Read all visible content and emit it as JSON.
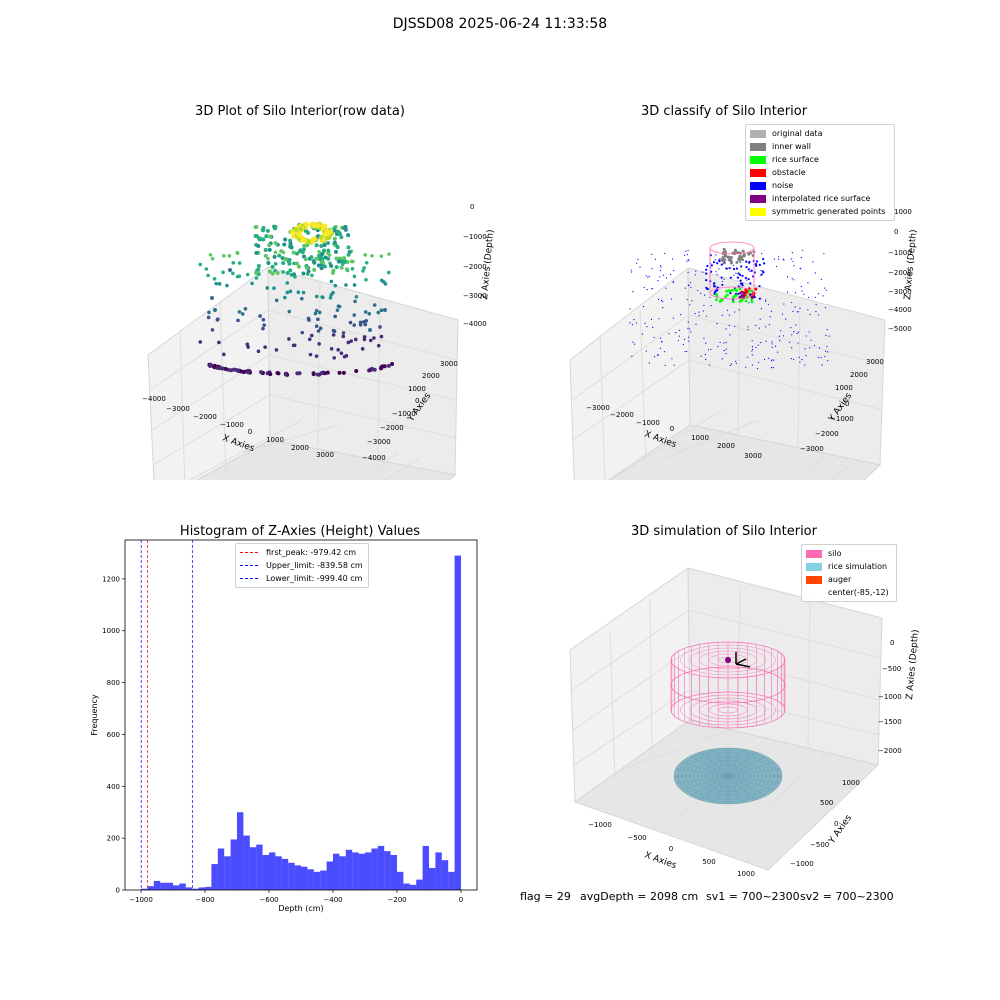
{
  "suptitle": "DJSSD08 2025-06-24 11:33:58",
  "panels": {
    "raw": {
      "title": "3D Plot of Silo Interior(row data)",
      "xlabel": "X Axies",
      "ylabel": "Y Axies",
      "zlabel": "Z Axies (Depth)",
      "xticks": [
        "−4000",
        "−3000",
        "−2000",
        "−1000",
        "0",
        "1000",
        "2000",
        "3000"
      ],
      "yticks": [
        "−4000",
        "−3000",
        "−2000",
        "−1000",
        "0",
        "1000",
        "2000",
        "3000"
      ],
      "zticks": [
        "0",
        "−1000",
        "−2000",
        "−3000",
        "−4000"
      ]
    },
    "classify": {
      "title": "3D classify of Silo Interior",
      "xlabel": "X Axies",
      "ylabel": "Y Axies",
      "zlabel": "Z Axies (Depth)",
      "xticks": [
        "−3000",
        "−2000",
        "−1000",
        "0",
        "1000",
        "2000",
        "3000"
      ],
      "yticks": [
        "−3000",
        "−2000",
        "−1000",
        "0",
        "1000",
        "2000",
        "3000"
      ],
      "zticks": [
        "1000",
        "0",
        "−1000",
        "−2000",
        "−3000",
        "−4000",
        "−5000"
      ],
      "legend": [
        {
          "label": "original data",
          "color": "#b0b0b0"
        },
        {
          "label": "inner wall",
          "color": "#808080"
        },
        {
          "label": "rice surface",
          "color": "#00ff00"
        },
        {
          "label": "obstacle",
          "color": "#ff0000"
        },
        {
          "label": "noise",
          "color": "#0000ff"
        },
        {
          "label": "interpolated rice surface",
          "color": "#800080"
        },
        {
          "label": "symmetric generated points",
          "color": "#ffff00"
        }
      ]
    },
    "simulation": {
      "title": "3D simulation of Silo Interior",
      "xlabel": "X Axies",
      "ylabel": "Y Axies",
      "zlabel": "Z Axies (Depth)",
      "xticks": [
        "−1000",
        "−500",
        "0",
        "500",
        "1000"
      ],
      "yticks": [
        "−1000",
        "−500",
        "0",
        "500",
        "1000"
      ],
      "zticks": [
        "0",
        "−500",
        "−1000",
        "−1500",
        "−2000"
      ],
      "legend": [
        {
          "label": "silo",
          "color": "#ff69b4"
        },
        {
          "label": "rice simulation",
          "color": "#87ceeb"
        },
        {
          "label": "auger",
          "color": "#ff4500"
        },
        {
          "label": "center(-85,-12)",
          "color": ""
        }
      ]
    }
  },
  "status": {
    "flag": "flag = 29",
    "avg_depth": "avgDepth = 2098 cm",
    "sv1": "sv1 = 700~2300",
    "sv2": "sv2 = 700~2300"
  },
  "chart_data": [
    {
      "type": "scatter",
      "subtype": "3d",
      "title": "3D Plot of Silo Interior(row data)",
      "xlabel": "X Axies",
      "ylabel": "Y Axies",
      "zlabel": "Z Axies (Depth)",
      "xlim": [
        -4000,
        3500
      ],
      "ylim": [
        -4000,
        3500
      ],
      "zlim": [
        -4800,
        200
      ],
      "colormap": "viridis"
    },
    {
      "type": "scatter",
      "subtype": "3d",
      "title": "3D classify of Silo Interior",
      "xlabel": "X Axies",
      "ylabel": "Y Axies",
      "zlabel": "Z Axies (Depth)",
      "xlim": [
        -3500,
        3500
      ],
      "ylim": [
        -3500,
        3500
      ],
      "zlim": [
        -5500,
        1200
      ],
      "legend_position": "top-right"
    },
    {
      "type": "bar",
      "subtype": "histogram",
      "title": "Histogram of Z-Axies (Height) Values",
      "xlabel": "Depth (cm)",
      "ylabel": "Frequency",
      "xlim": [
        -1050,
        50
      ],
      "ylim": [
        0,
        1350
      ],
      "xticks": [
        -1000,
        -800,
        -600,
        -400,
        -200,
        0
      ],
      "yticks": [
        0,
        200,
        400,
        600,
        800,
        1000,
        1200
      ],
      "bin_start": -1000,
      "bin_width": 20,
      "color": "#0000ff",
      "values": [
        5,
        15,
        35,
        28,
        28,
        18,
        25,
        10,
        5,
        10,
        12,
        100,
        160,
        130,
        195,
        300,
        210,
        165,
        175,
        135,
        145,
        130,
        120,
        105,
        95,
        90,
        80,
        70,
        75,
        110,
        140,
        130,
        155,
        145,
        140,
        145,
        160,
        170,
        150,
        135,
        70,
        25,
        20,
        40,
        170,
        85,
        145,
        115,
        70,
        1290
      ],
      "vlines": [
        {
          "label": "first_peak: -979.42 cm",
          "x": -979.42,
          "color": "#ff0000"
        },
        {
          "label": "Upper_limit: -839.58 cm",
          "x": -839.58,
          "color": "#0000ff"
        },
        {
          "label": "Lower_limit: -999.40 cm",
          "x": -999.4,
          "color": "#0000ff"
        }
      ],
      "legend_position": "top-center"
    },
    {
      "type": "scatter",
      "subtype": "3d-surface",
      "title": "3D simulation of Silo Interior",
      "xlabel": "X Axies",
      "ylabel": "Y Axies",
      "zlabel": "Z Axies (Depth)",
      "xlim": [
        -1300,
        1300
      ],
      "ylim": [
        -1300,
        1300
      ],
      "zlim": [
        -2200,
        300
      ],
      "legend_position": "top-right"
    }
  ]
}
